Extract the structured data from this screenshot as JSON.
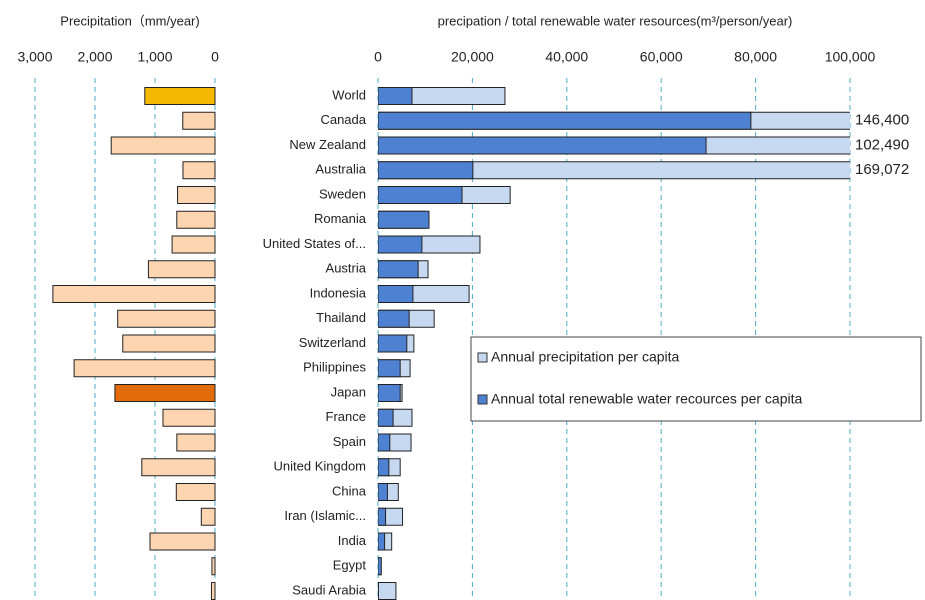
{
  "chart_data": [
    {
      "type": "bar",
      "orientation": "horizontal",
      "title": "Precipitation（mm/year)",
      "values": [
        1170,
        537,
        1730,
        534,
        624,
        637,
        715,
        1110,
        2702,
        1622,
        1537,
        2348,
        1668,
        867,
        636,
        1220,
        645,
        228,
        1083,
        51,
        59
      ],
      "colors": [
        "#f5b800",
        "#fdd5b0",
        "#fdd5b0",
        "#fdd5b0",
        "#fdd5b0",
        "#fdd5b0",
        "#fdd5b0",
        "#fdd5b0",
        "#fdd5b0",
        "#fdd5b0",
        "#fdd5b0",
        "#fdd5b0",
        "#e36c0a",
        "#fdd5b0",
        "#fdd5b0",
        "#fdd5b0",
        "#fdd5b0",
        "#fdd5b0",
        "#fdd5b0",
        "#fdd5b0",
        "#fdd5b0"
      ],
      "xlim": [
        3000,
        0
      ],
      "xticks": [
        {
          "value": 3000,
          "label": "3,000"
        },
        {
          "value": 2000,
          "label": "2,000"
        },
        {
          "value": 1000,
          "label": "1,000"
        },
        0
      ],
      "grid": true
    },
    {
      "type": "bar",
      "orientation": "horizontal",
      "title": "precipation / total renewable water resources(m³/person/year)",
      "categories": [
        "World",
        "Canada",
        "New Zealand",
        "Australia",
        "Sweden",
        "Romania",
        "United States of...",
        "Austria",
        "Indonesia",
        "Thailand",
        "Switzerland",
        "Philippines",
        "Japan",
        "France",
        "Spain",
        "United Kingdom",
        "China",
        "Iran (Islamic...",
        "India",
        "Egypt",
        "Saudi Arabia"
      ],
      "series": [
        {
          "name": "Annual precipitation per capita",
          "color": "#c6d9f1",
          "values": [
            26900,
            146400,
            102490,
            169072,
            28000,
            10000,
            21600,
            10600,
            19300,
            11900,
            7600,
            6800,
            5100,
            7200,
            7000,
            4700,
            4300,
            5200,
            2900,
            500,
            3800
          ],
          "value_labels": [
            null,
            "146,400",
            "102,490",
            "169,072",
            null,
            null,
            null,
            null,
            null,
            null,
            null,
            null,
            null,
            null,
            null,
            null,
            null,
            null,
            null,
            null,
            null
          ]
        },
        {
          "name": "Annual total renewable water recources per capita",
          "color": "#4f81d2",
          "values": [
            7200,
            79000,
            69500,
            20100,
            17800,
            10800,
            9300,
            8500,
            7400,
            6600,
            6100,
            4700,
            4700,
            3200,
            2500,
            2300,
            2000,
            1600,
            1400,
            700,
            100
          ]
        }
      ],
      "xlim": [
        0,
        100000
      ],
      "xticks": [
        0,
        {
          "value": 20000,
          "label": "20,000"
        },
        {
          "value": 40000,
          "label": "40,000"
        },
        {
          "value": 60000,
          "label": "60,000"
        },
        {
          "value": 80000,
          "label": "80,000"
        },
        {
          "value": 100000,
          "label": "100,000"
        }
      ],
      "grid": true,
      "legend": "center right"
    }
  ]
}
